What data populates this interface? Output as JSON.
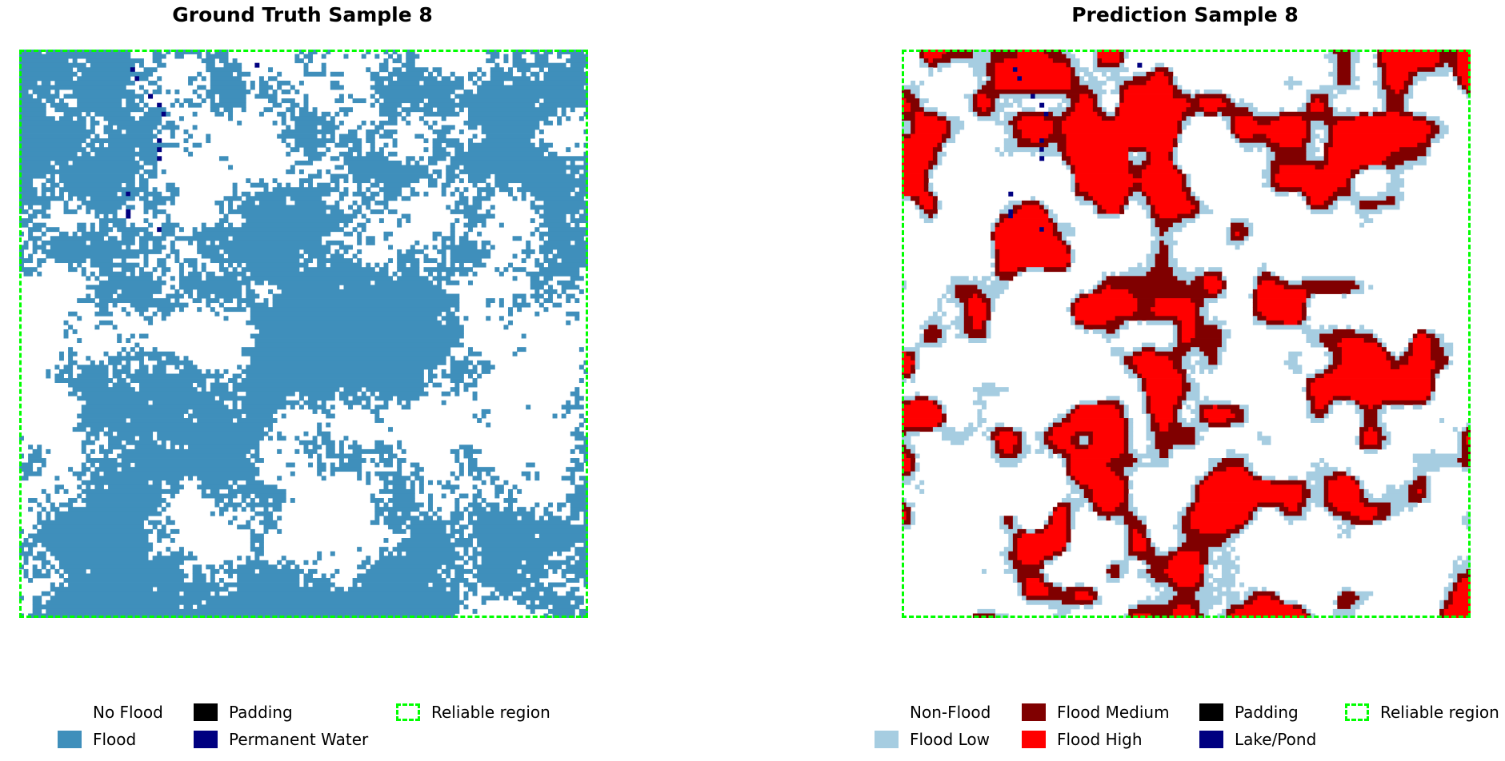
{
  "panels": {
    "left": {
      "title": "Ground Truth Sample 8"
    },
    "right": {
      "title": "Prediction Sample 8"
    }
  },
  "colors": {
    "gt_flood": "#3f8fbb",
    "permanent_water": "#000080",
    "pred_low": "#a6cde1",
    "pred_medium": "#800000",
    "pred_high": "#ff0000",
    "padding": "#000000",
    "reliable": "#00ff00"
  },
  "legend_left": {
    "no_flood": "No Flood",
    "flood": "Flood",
    "padding": "Padding",
    "permanent_water": "Permanent Water",
    "reliable": "Reliable region"
  },
  "legend_right": {
    "non_flood": "Non-Flood",
    "flood_low": "Flood Low",
    "flood_medium": "Flood Medium",
    "flood_high": "Flood High",
    "padding": "Padding",
    "lake_pond": "Lake/Pond",
    "reliable": "Reliable region"
  }
}
